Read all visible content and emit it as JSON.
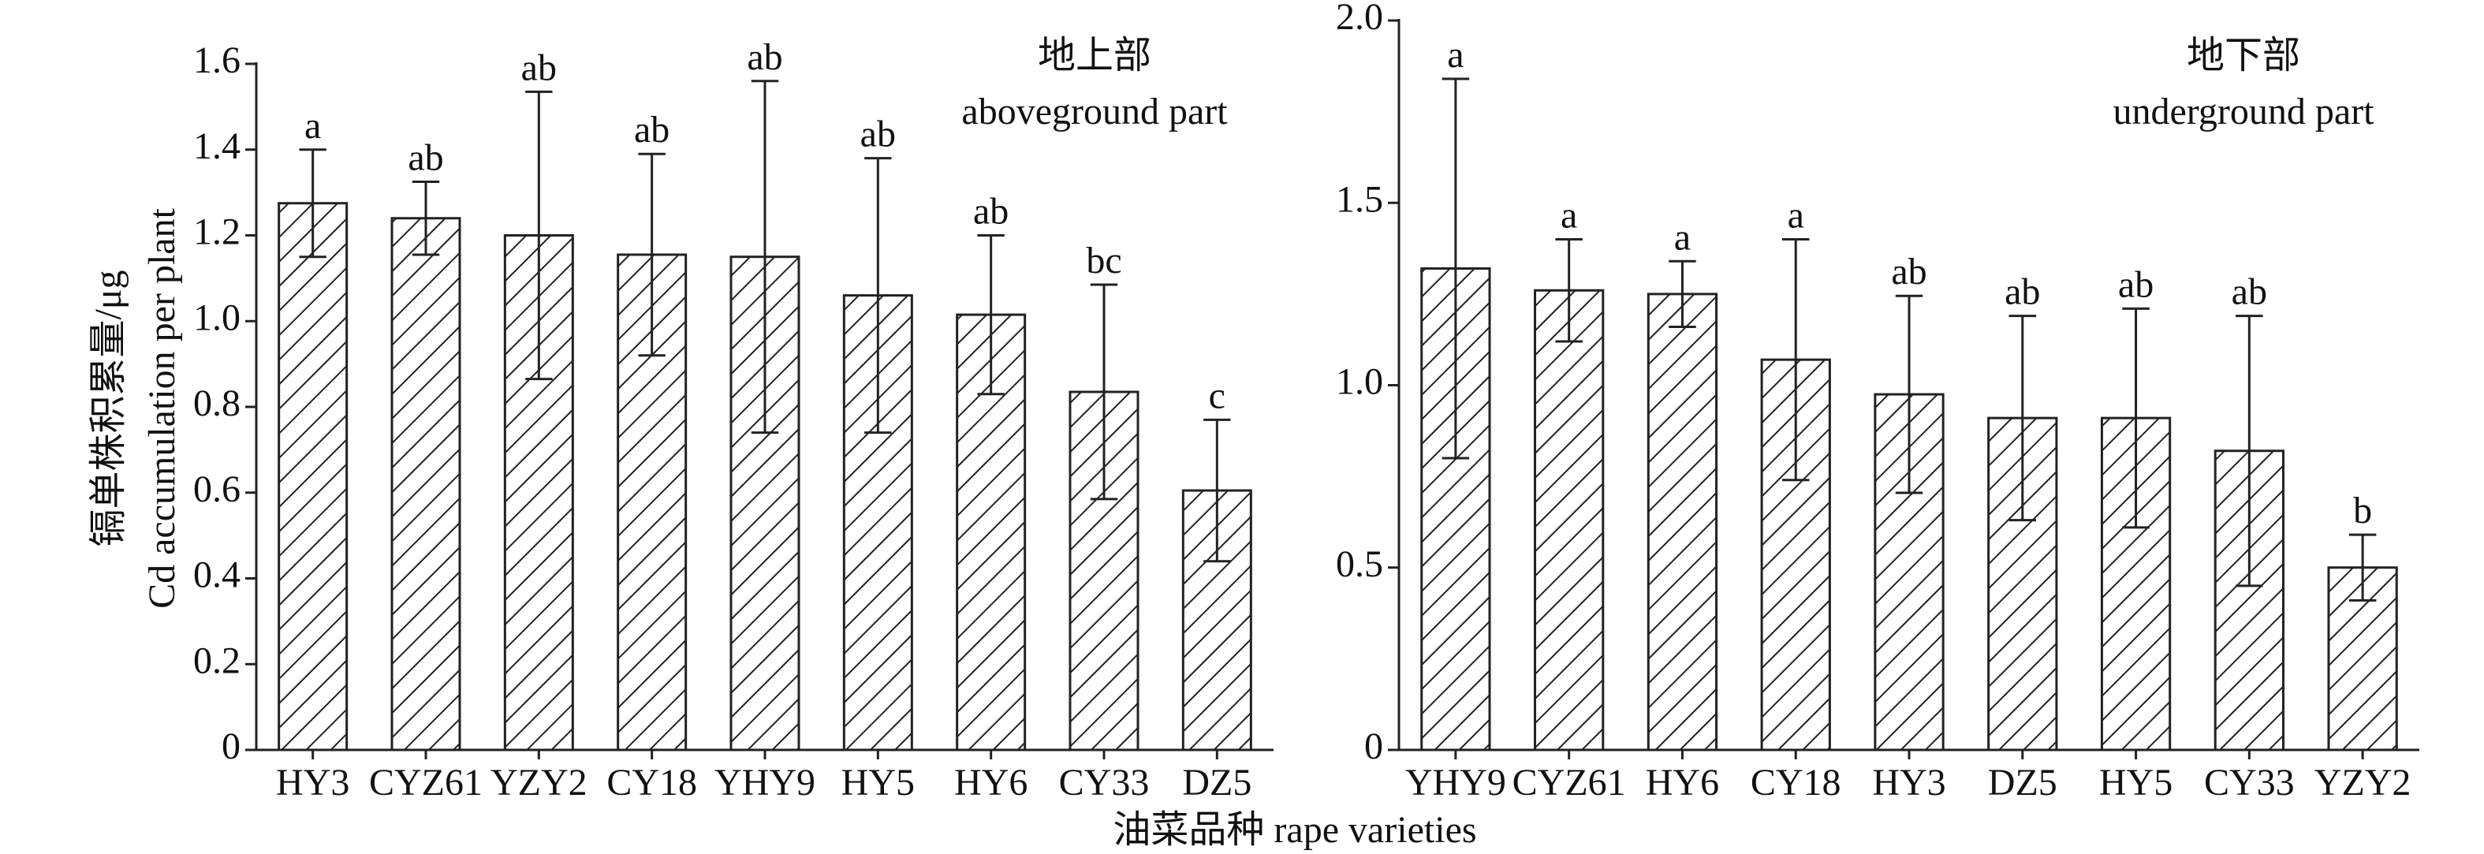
{
  "x_label": "油菜品种 rape varieties",
  "chart_data": [
    {
      "type": "bar",
      "y_label": [
        "镉单株积累量/μg",
        "Cd accumulation per plant"
      ],
      "annotation": [
        "地上部",
        "aboveground part"
      ],
      "categories": [
        "HY3",
        "CYZ61",
        "YZY2",
        "CY18",
        "YHY9",
        "HY5",
        "HY6",
        "CY33",
        "DZ5"
      ],
      "values": [
        1.275,
        1.24,
        1.2,
        1.155,
        1.15,
        1.06,
        1.015,
        0.835,
        0.605
      ],
      "errors": [
        0.125,
        0.085,
        0.335,
        0.235,
        0.41,
        0.32,
        0.185,
        0.25,
        0.165
      ],
      "letters": [
        "a",
        "ab",
        "ab",
        "ab",
        "ab",
        "ab",
        "ab",
        "bc",
        "c"
      ],
      "color": "#222222",
      "ylim": [
        0,
        1.6
      ],
      "yticks": [
        0,
        0.2,
        0.4,
        0.6,
        0.8,
        {
          "value": 1,
          "label": "1.0"
        },
        1.2,
        1.4,
        1.6
      ]
    },
    {
      "type": "bar",
      "annotation": [
        "地下部",
        "underground part"
      ],
      "categories": [
        "YHY9",
        "CYZ61",
        "HY6",
        "CY18",
        "HY3",
        "DZ5",
        "HY5",
        "CY33",
        "YZY2"
      ],
      "values": [
        1.32,
        1.26,
        1.25,
        1.07,
        0.975,
        0.91,
        0.91,
        0.82,
        0.5
      ],
      "errors": [
        0.52,
        0.14,
        0.09,
        0.33,
        0.27,
        0.28,
        0.3,
        0.37,
        0.09
      ],
      "letters": [
        "a",
        "a",
        "a",
        "a",
        "ab",
        "ab",
        "ab",
        "ab",
        "b"
      ],
      "color": "#222222",
      "ylim": [
        0,
        2
      ],
      "yticks": [
        0,
        0.5,
        {
          "value": 1,
          "label": "1.0"
        },
        1.5,
        {
          "value": 2,
          "label": "2.0"
        }
      ]
    }
  ]
}
